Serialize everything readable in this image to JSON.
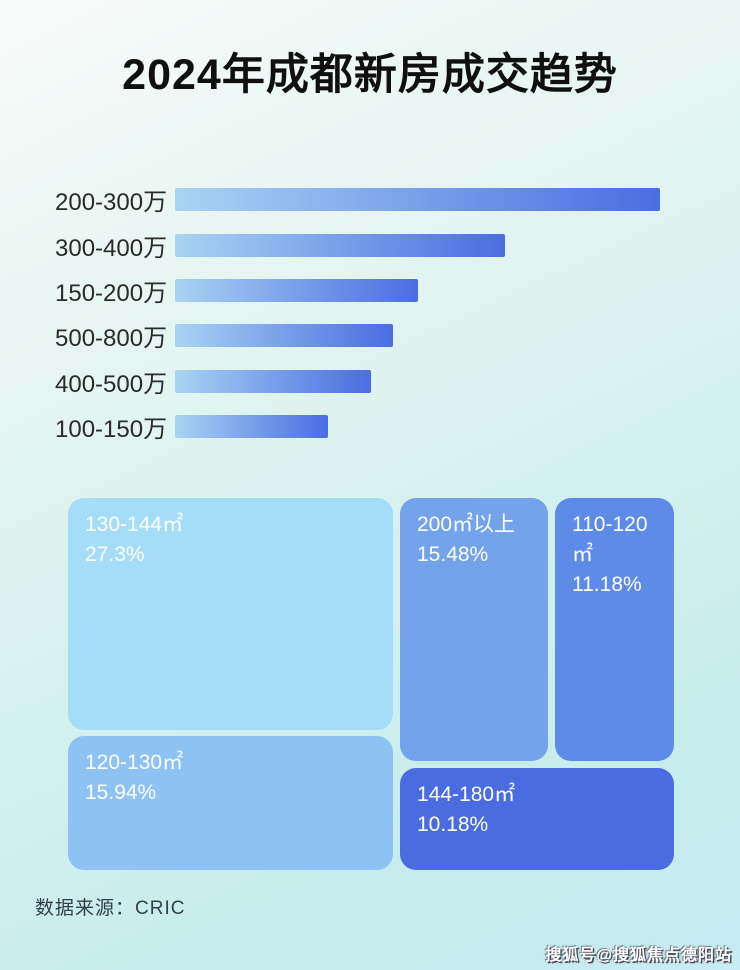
{
  "page": {
    "title": "2024年成都新房成交趋势",
    "source": "数据来源：CRIC",
    "watermark": "搜狐号@搜狐焦点德阳站"
  },
  "colors": {
    "background_top_left": "#f8fbfa",
    "background_bottom_right": "#c7ecf2",
    "bar_gradient_start": "#a9d4f2",
    "bar_gradient_end": "#4b6de1",
    "title_text": "#101010",
    "bar_label_text": "#2b2b2b",
    "treemap_text": "#ffffff"
  },
  "chart_data": [
    {
      "type": "bar",
      "orientation": "horizontal",
      "title": "2024年成都新房成交趋势",
      "categories": [
        "200-300万",
        "300-400万",
        "150-200万",
        "500-800万",
        "400-500万",
        "100-150万"
      ],
      "values": [
        100,
        68,
        50,
        45,
        40.5,
        31.5
      ],
      "values_note": "bars carry no numeric labels; values are bar lengths as percent of the longest bar, estimated from pixels",
      "xlabel": "",
      "ylabel": "",
      "grid": false,
      "legend": false,
      "bar_color": "gradient #a9d4f2 to #4b6de1, left to right"
    },
    {
      "type": "treemap",
      "title": "",
      "unit": "%",
      "items": [
        {
          "label": "130-144㎡",
          "value": 27.3,
          "display_value": "27.3%",
          "color": "#a5ddf8"
        },
        {
          "label": "200㎡以上",
          "value": 15.48,
          "display_value": "15.48%",
          "color": "#74a3ec"
        },
        {
          "label": "110-120㎡",
          "value": 11.18,
          "display_value": "11.18%",
          "color": "#5e8ae8"
        },
        {
          "label": "120-130㎡",
          "value": 15.94,
          "display_value": "15.94%",
          "color": "#8ec2f5"
        },
        {
          "label": "144-180㎡",
          "value": 10.18,
          "display_value": "10.18%",
          "color": "#4a6ce0"
        }
      ],
      "legend": false
    }
  ]
}
